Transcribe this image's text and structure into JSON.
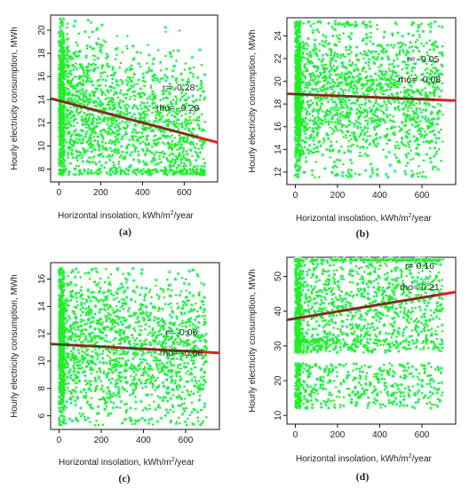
{
  "colors": {
    "points": "#22ee22",
    "halo": "#c8f5f8",
    "fit_red": "#e02020",
    "fit_dark": "#2e4a1e",
    "axis": "#111111",
    "text": "#222222"
  },
  "chart_data": [
    {
      "panel": "(a)",
      "type": "scatter",
      "xlabel": "Horizontal insolation, kWh/m2/year",
      "xlabel_main": "Horizontal insolation, kWh/m",
      "xlabel_sup": "2",
      "xlabel_tail": "/year",
      "ylabel": "Hourly electricity consumption, MWh",
      "xticks": [
        0,
        200,
        400,
        600
      ],
      "yticks": [
        8,
        10,
        12,
        14,
        16,
        18,
        20
      ],
      "xlim": [
        -40,
        760
      ],
      "ylim": [
        6.9,
        21.3
      ],
      "cloud": {
        "x_min": 0,
        "x_max": 700,
        "y_min": 7.5,
        "y_max": 21,
        "n_points": 2300
      },
      "fit": {
        "x": [
          -40,
          760
        ],
        "y": [
          14.1,
          10.3
        ]
      },
      "r_label": "r= -0.28",
      "rho_label": "rho= -0.29",
      "r": -0.28,
      "rho": -0.29
    },
    {
      "panel": "(b)",
      "type": "scatter",
      "xlabel": "Horizontal insolation, kWh/m2/year",
      "xlabel_main": "Horizontal insolation, kWh/m",
      "xlabel_sup": "2",
      "xlabel_tail": "/year",
      "ylabel": "Hourly electricity consumption, MWh",
      "xticks": [
        0,
        200,
        400,
        600
      ],
      "yticks": [
        12,
        14,
        16,
        18,
        20,
        22,
        24
      ],
      "xlim": [
        -40,
        760
      ],
      "ylim": [
        10.9,
        25.6
      ],
      "cloud": {
        "x_min": 0,
        "x_max": 700,
        "y_min": 11.5,
        "y_max": 25.3,
        "n_points": 2300
      },
      "fit": {
        "x": [
          -40,
          760
        ],
        "y": [
          18.9,
          18.3
        ]
      },
      "r_label": "r= -0.05",
      "rho_label": "rho= -0.08",
      "r": -0.05,
      "rho": -0.08
    },
    {
      "panel": "(c)",
      "type": "scatter",
      "xlabel": "Horizontal insolation, kWh/m2/year",
      "xlabel_main": "Horizontal insolation, kWh/m",
      "xlabel_sup": "2",
      "xlabel_tail": "/year",
      "ylabel": "Hourly electricity consumption, MWh",
      "xticks": [
        0,
        200,
        400,
        600
      ],
      "yticks": [
        6,
        8,
        10,
        12,
        14,
        16
      ],
      "xlim": [
        -40,
        760
      ],
      "ylim": [
        5.0,
        17.2
      ],
      "cloud": {
        "x_min": 0,
        "x_max": 700,
        "y_min": 5.3,
        "y_max": 16.8,
        "n_points": 2300
      },
      "fit": {
        "x": [
          -40,
          760
        ],
        "y": [
          11.25,
          10.6
        ]
      },
      "r_label": "r= -0.06",
      "rho_label": "rho= -0.08",
      "r": -0.06,
      "rho": -0.08
    },
    {
      "panel": "(d)",
      "type": "scatter",
      "xlabel": "Horizontal insolation, kWh/m2/year",
      "xlabel_main": "Horizontal insolation, kWh/m",
      "xlabel_sup": "2",
      "xlabel_tail": "/year",
      "ylabel": "Hourly electricity consumption, MWh",
      "xticks": [
        0,
        200,
        400,
        600
      ],
      "yticks": [
        10,
        20,
        30,
        40,
        50
      ],
      "xlim": [
        -40,
        760
      ],
      "ylim": [
        7.5,
        55.5
      ],
      "cloud": {
        "x_min": 0,
        "x_max": 700,
        "y_min": 9.5,
        "y_max": 55,
        "n_points": 2300
      },
      "fit": {
        "x": [
          -40,
          760
        ],
        "y": [
          37.5,
          45.5
        ]
      },
      "r_label": "r= 0.16",
      "rho_label": "rho= 0.21",
      "r": 0.16,
      "rho": 0.21
    }
  ]
}
